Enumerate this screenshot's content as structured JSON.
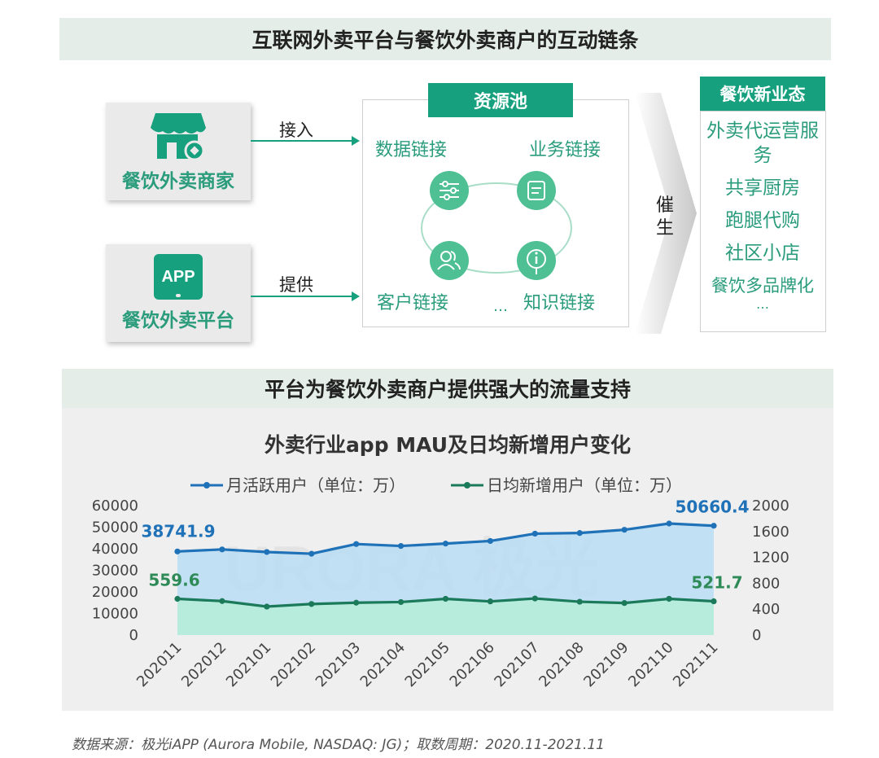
{
  "top": {
    "title": "互联网外卖平台与餐饮外卖商户的互动链条",
    "merchant_label": "餐饮外卖商家",
    "platform_label": "餐饮外卖平台",
    "app_icon_text": "APP",
    "access_label": "接入",
    "provide_label": "提供",
    "pool_title": "资源池",
    "links": [
      "数据链接",
      "业务链接",
      "客户链接",
      "知识链接"
    ],
    "ellipsis": "…",
    "catalyze_label": [
      "催",
      "生"
    ],
    "new_biz_title": "餐饮新业态",
    "new_biz_items": [
      "外卖代运营服务",
      "共享厨房",
      "跑腿代购",
      "社区小店",
      "餐饮多品牌化",
      "…"
    ]
  },
  "bottom": {
    "title": "平台为餐饮外卖商户提供强大的流量支持"
  },
  "chart_data": {
    "type": "line",
    "title": "外卖行业app MAU及日均新增用户变化",
    "categories": [
      "202011",
      "202012",
      "202101",
      "202102",
      "202103",
      "202104",
      "202105",
      "202106",
      "202107",
      "202108",
      "202109",
      "202110",
      "202111"
    ],
    "series": [
      {
        "name": "月活跃用户（单位：万）",
        "axis": "left",
        "color": "#1f72b8",
        "values": [
          38741.9,
          39700,
          38500,
          37700,
          42200,
          41300,
          42400,
          43600,
          47000,
          47300,
          48800,
          51700,
          50660.4
        ]
      },
      {
        "name": "日均新增用户（单位：万）",
        "axis": "right",
        "color": "#1b7a5a",
        "values": [
          559.6,
          525,
          440,
          480,
          500,
          510,
          560,
          520,
          565,
          515,
          495,
          560,
          521.7
        ]
      }
    ],
    "left_ticks": [
      "60000",
      "50000",
      "40000",
      "30000",
      "20000",
      "10000",
      "0"
    ],
    "right_ticks": [
      "2000",
      "1600",
      "1200",
      "800",
      "400",
      "0"
    ],
    "ylim_left": [
      0,
      60000
    ],
    "ylim_right": [
      0,
      2000
    ],
    "data_labels": {
      "mau_first": "38741.9",
      "mau_last": "50660.4",
      "new_first": "559.6",
      "new_last": "521.7"
    },
    "watermark": "URORA 极光"
  },
  "source": "数据来源：极光iAPP (Aurora Mobile, NASDAQ: JG)；取数周期：2020.11-2021.11",
  "colors": {
    "accent_green": "#16a07e",
    "label_green": "#2a9c7c",
    "mau_blue": "#1f72b8",
    "new_green": "#1b7a5a"
  }
}
